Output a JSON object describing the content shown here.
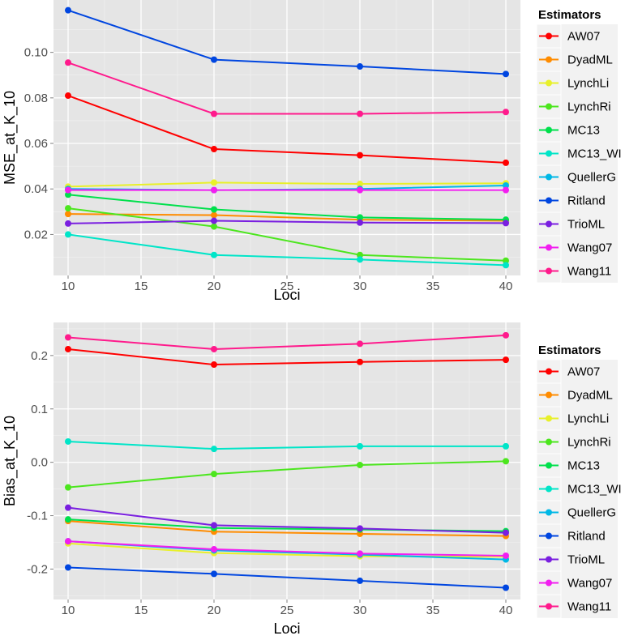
{
  "chart_data": [
    {
      "type": "line",
      "title": "",
      "xlabel": "Loci",
      "ylabel": "MSE_at_K_10",
      "x": [
        10,
        20,
        30,
        40
      ],
      "xlim": [
        9,
        41
      ],
      "ylim": [
        0.002,
        0.123
      ],
      "xticks": [
        10,
        15,
        20,
        25,
        30,
        35,
        40
      ],
      "yticks": [
        0.02,
        0.04,
        0.06,
        0.08,
        0.1
      ],
      "ytick_labels": [
        "0.02",
        "0.04",
        "0.06",
        "0.08",
        "0.10"
      ],
      "grid": true,
      "legend_title": "Estimators",
      "legend_position": "right",
      "series": [
        {
          "name": "AW07",
          "color": "#FF0000",
          "values": [
            0.081,
            0.0575,
            0.0548,
            0.0515
          ]
        },
        {
          "name": "DyadML",
          "color": "#FF8C00",
          "values": [
            0.029,
            0.0285,
            0.0265,
            0.026
          ]
        },
        {
          "name": "LynchLi",
          "color": "#E8F02A",
          "values": [
            0.041,
            0.0428,
            0.0422,
            0.0425
          ]
        },
        {
          "name": "LynchRi",
          "color": "#4CE61E",
          "values": [
            0.0315,
            0.0235,
            0.011,
            0.0085
          ]
        },
        {
          "name": "MC13",
          "color": "#00E04C",
          "values": [
            0.0375,
            0.031,
            0.0275,
            0.0265
          ]
        },
        {
          "name": "MC13_WI",
          "color": "#00E5C8",
          "values": [
            0.02,
            0.011,
            0.009,
            0.0065
          ]
        },
        {
          "name": "QuellerG",
          "color": "#00B8E6",
          "values": [
            0.04,
            0.0395,
            0.04,
            0.0415
          ]
        },
        {
          "name": "Ritland",
          "color": "#0046E0",
          "values": [
            0.1185,
            0.0968,
            0.0938,
            0.0905
          ]
        },
        {
          "name": "TrioML",
          "color": "#7A1FE0",
          "values": [
            0.0248,
            0.026,
            0.0252,
            0.025
          ]
        },
        {
          "name": "Wang07",
          "color": "#F21EF0",
          "values": [
            0.0395,
            0.0395,
            0.0395,
            0.0395
          ]
        },
        {
          "name": "Wang11",
          "color": "#FF1A8C",
          "values": [
            0.0955,
            0.073,
            0.073,
            0.0738
          ]
        }
      ]
    },
    {
      "type": "line",
      "title": "",
      "xlabel": "Loci",
      "ylabel": "Bias_at_K_10",
      "x": [
        10,
        20,
        30,
        40
      ],
      "xlim": [
        9,
        41
      ],
      "ylim": [
        -0.257,
        0.262
      ],
      "xticks": [
        10,
        15,
        20,
        25,
        30,
        35,
        40
      ],
      "yticks": [
        -0.2,
        -0.1,
        0.0,
        0.1,
        0.2
      ],
      "ytick_labels": [
        "-0.2",
        "-0.1",
        "0.0",
        "0.1",
        "0.2"
      ],
      "grid": true,
      "legend_title": "Estimators",
      "legend_position": "right",
      "series": [
        {
          "name": "AW07",
          "color": "#FF0000",
          "values": [
            0.212,
            0.183,
            0.188,
            0.192
          ]
        },
        {
          "name": "DyadML",
          "color": "#FF8C00",
          "values": [
            -0.11,
            -0.13,
            -0.134,
            -0.138
          ]
        },
        {
          "name": "LynchLi",
          "color": "#E8F02A",
          "values": [
            -0.152,
            -0.17,
            -0.176,
            -0.177
          ]
        },
        {
          "name": "LynchRi",
          "color": "#4CE61E",
          "values": [
            -0.047,
            -0.022,
            -0.005,
            0.002
          ]
        },
        {
          "name": "MC13",
          "color": "#00E04C",
          "values": [
            -0.107,
            -0.123,
            -0.126,
            -0.129
          ]
        },
        {
          "name": "MC13_WI",
          "color": "#00E5C8",
          "values": [
            0.039,
            0.025,
            0.03,
            0.03
          ]
        },
        {
          "name": "QuellerG",
          "color": "#00B8E6",
          "values": [
            -0.148,
            -0.165,
            -0.173,
            -0.182
          ]
        },
        {
          "name": "Ritland",
          "color": "#0046E0",
          "values": [
            -0.197,
            -0.209,
            -0.222,
            -0.235
          ]
        },
        {
          "name": "TrioML",
          "color": "#7A1FE0",
          "values": [
            -0.085,
            -0.118,
            -0.124,
            -0.132
          ]
        },
        {
          "name": "Wang07",
          "color": "#F21EF0",
          "values": [
            -0.148,
            -0.163,
            -0.171,
            -0.175
          ]
        },
        {
          "name": "Wang11",
          "color": "#FF1A8C",
          "values": [
            0.234,
            0.212,
            0.222,
            0.238
          ]
        }
      ]
    }
  ]
}
